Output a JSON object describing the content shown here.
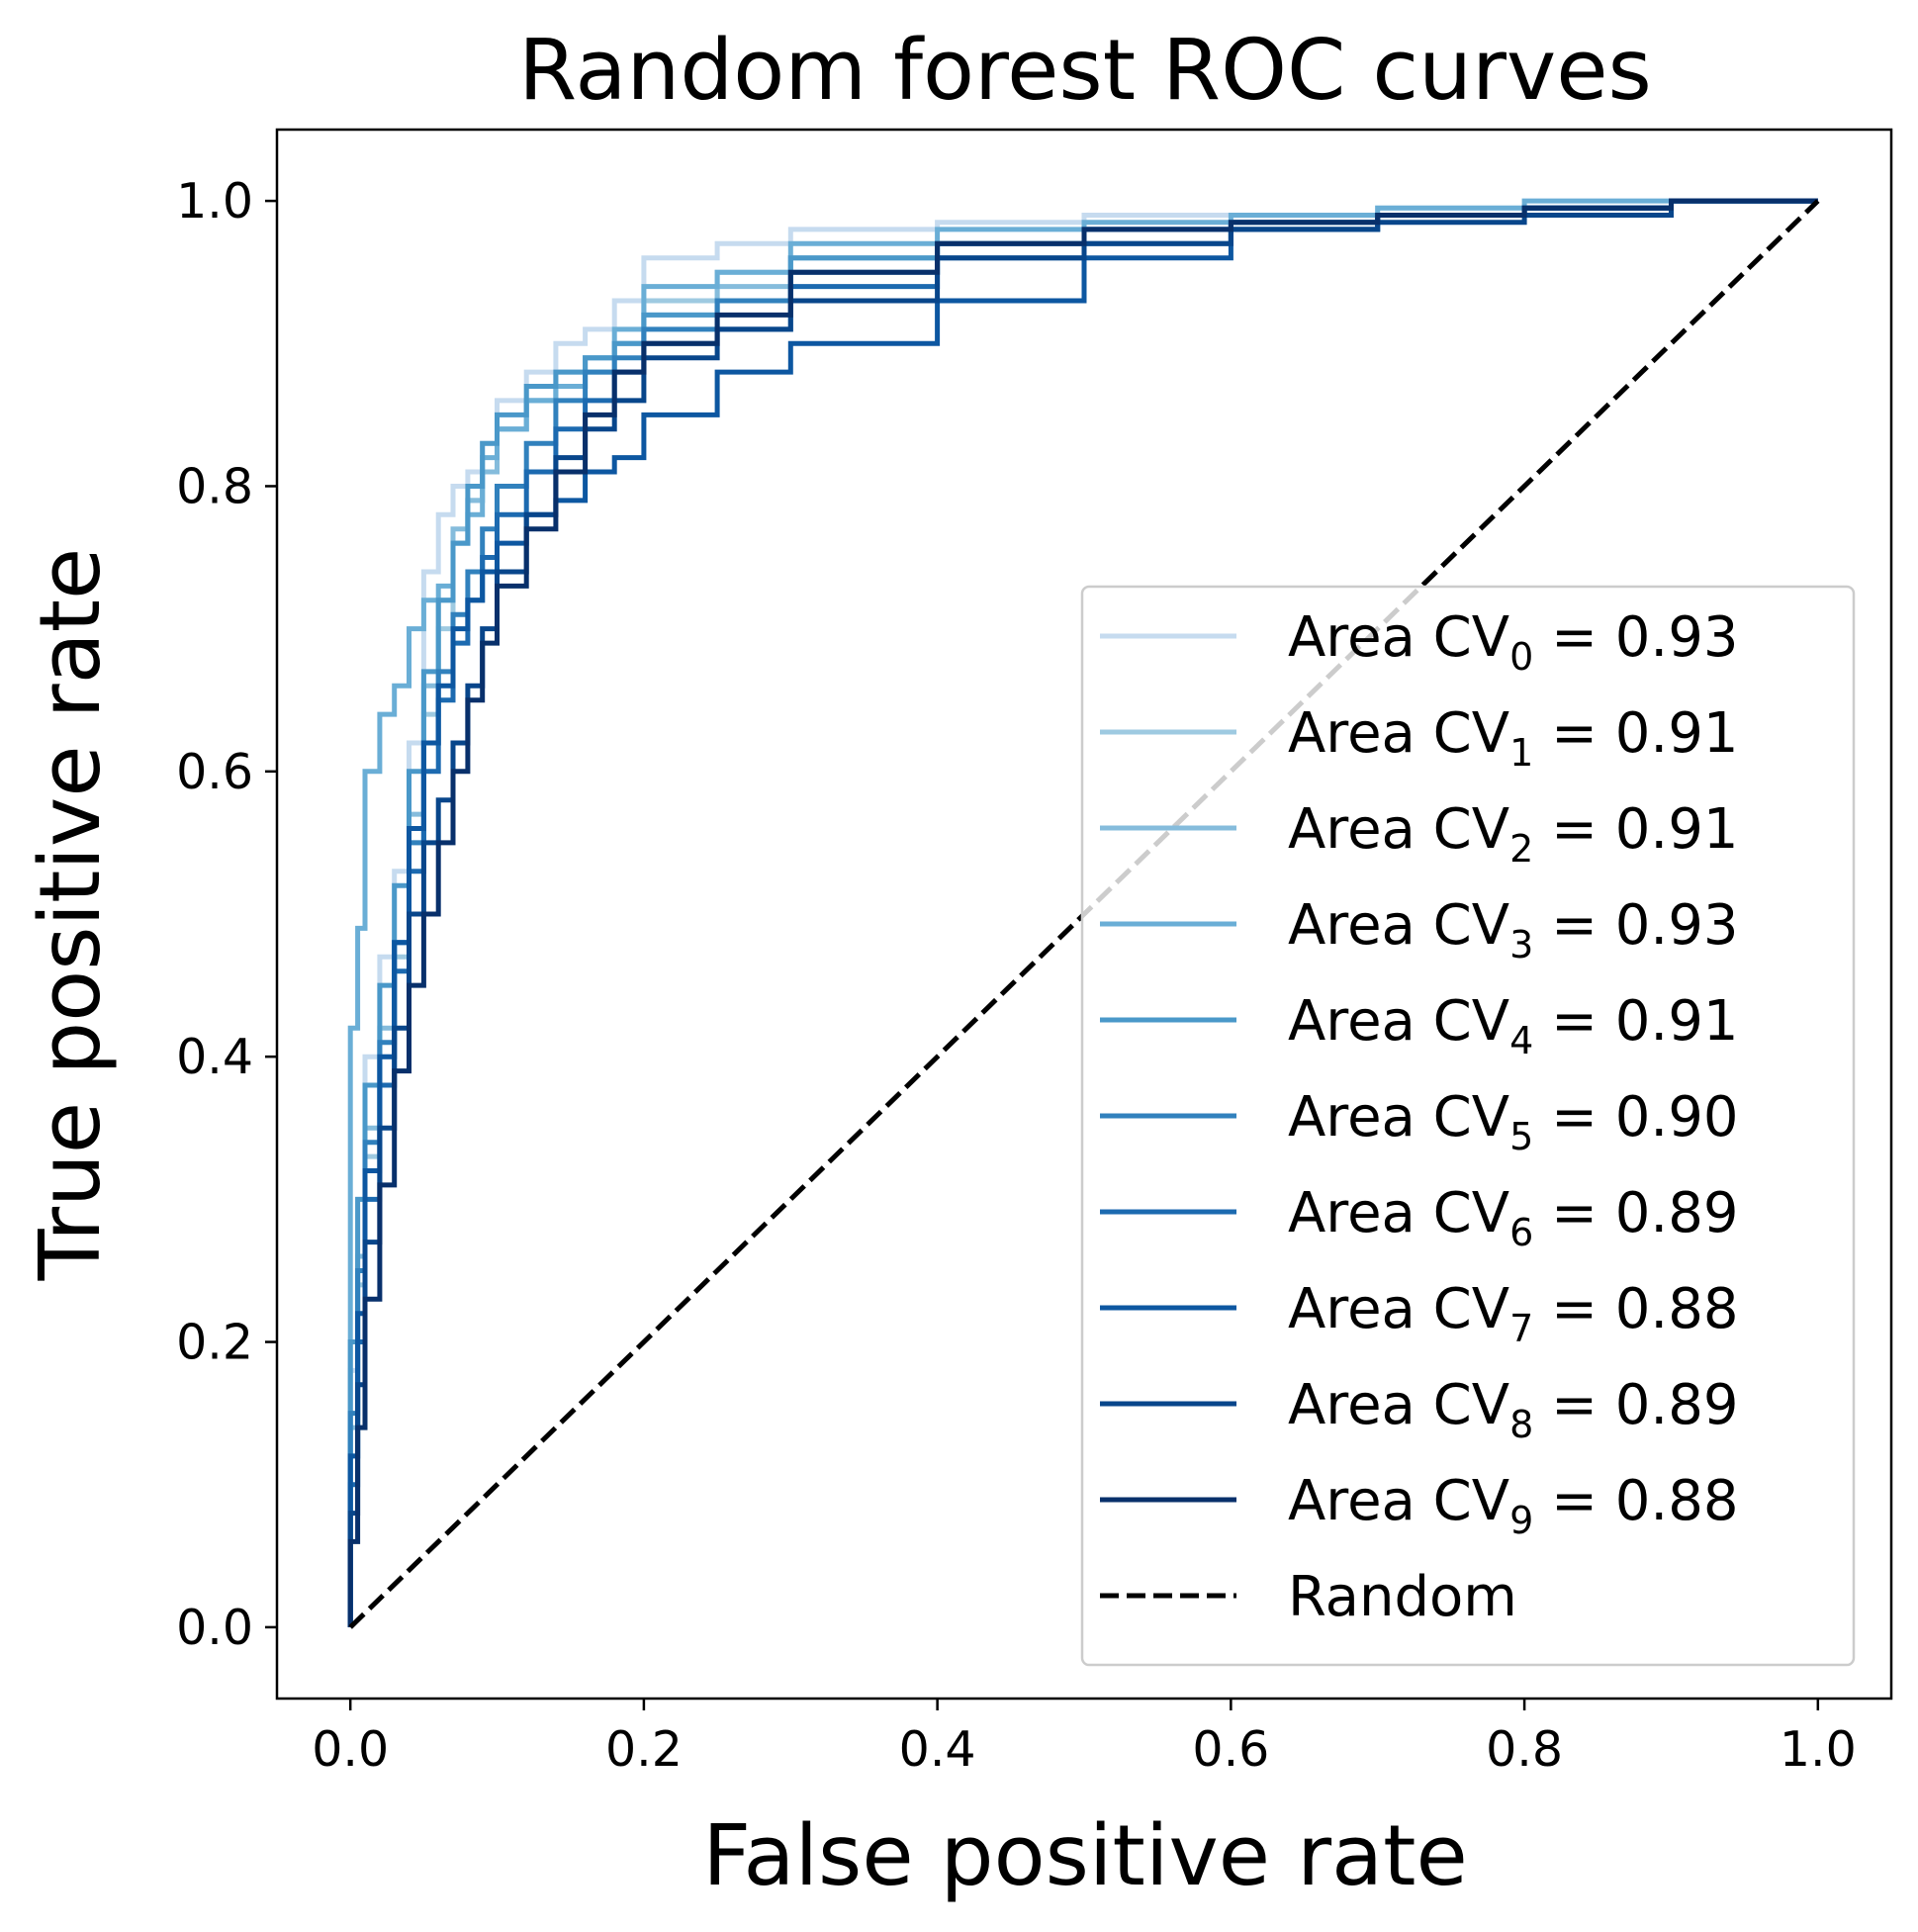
{
  "chart_data": {
    "type": "line",
    "title": "Random forest ROC curves",
    "xlabel": "False positive rate",
    "ylabel": "True positive rate",
    "xlim": [
      -0.05,
      1.05
    ],
    "ylim": [
      -0.05,
      1.05
    ],
    "xticks": [
      "0.0",
      "0.2",
      "0.4",
      "0.6",
      "0.8",
      "1.0"
    ],
    "yticks": [
      "0.0",
      "0.2",
      "0.4",
      "0.6",
      "0.8",
      "1.0"
    ],
    "grid": false,
    "legend_position": "lower-right",
    "series": [
      {
        "label_prefix": "Area CV",
        "label_sub": "0",
        "label_value": "= 0.93",
        "color": "#c6dbef",
        "x": [
          0,
          0.005,
          0.01,
          0.02,
          0.03,
          0.04,
          0.05,
          0.06,
          0.07,
          0.08,
          0.09,
          0.1,
          0.12,
          0.14,
          0.16,
          0.18,
          0.2,
          0.25,
          0.3,
          0.4,
          0.5,
          0.6,
          0.7,
          0.8,
          0.9,
          1.0
        ],
        "y": [
          0,
          0.18,
          0.3,
          0.4,
          0.47,
          0.53,
          0.62,
          0.74,
          0.78,
          0.8,
          0.81,
          0.83,
          0.86,
          0.88,
          0.9,
          0.91,
          0.93,
          0.96,
          0.97,
          0.98,
          0.985,
          0.99,
          0.99,
          0.995,
          0.995,
          1.0
        ]
      },
      {
        "label_prefix": "Area CV",
        "label_sub": "1",
        "label_value": "= 0.91",
        "color": "#9ecae1",
        "x": [
          0,
          0.005,
          0.01,
          0.02,
          0.03,
          0.04,
          0.05,
          0.06,
          0.07,
          0.08,
          0.09,
          0.1,
          0.12,
          0.14,
          0.16,
          0.18,
          0.2,
          0.25,
          0.3,
          0.4,
          0.5,
          0.6,
          0.7,
          0.8,
          0.9,
          1.0
        ],
        "y": [
          0,
          0.12,
          0.24,
          0.33,
          0.4,
          0.47,
          0.55,
          0.64,
          0.7,
          0.76,
          0.79,
          0.81,
          0.84,
          0.86,
          0.88,
          0.89,
          0.9,
          0.93,
          0.95,
          0.96,
          0.97,
          0.98,
          0.985,
          0.99,
          0.995,
          1.0
        ]
      },
      {
        "label_prefix": "Area CV",
        "label_sub": "2",
        "label_value": "= 0.91",
        "color": "#85bcdc",
        "x": [
          0,
          0.005,
          0.01,
          0.02,
          0.03,
          0.04,
          0.05,
          0.06,
          0.07,
          0.08,
          0.09,
          0.1,
          0.12,
          0.14,
          0.16,
          0.18,
          0.2,
          0.25,
          0.3,
          0.4,
          0.5,
          0.6,
          0.7,
          0.8,
          0.9,
          1.0
        ],
        "y": [
          0,
          0.14,
          0.26,
          0.35,
          0.42,
          0.48,
          0.57,
          0.66,
          0.72,
          0.77,
          0.79,
          0.81,
          0.84,
          0.86,
          0.87,
          0.88,
          0.9,
          0.92,
          0.94,
          0.96,
          0.97,
          0.98,
          0.985,
          0.99,
          0.995,
          1.0
        ]
      },
      {
        "label_prefix": "Area CV",
        "label_sub": "3",
        "label_value": "= 0.93",
        "color": "#6aaed6",
        "x": [
          0,
          0.005,
          0.01,
          0.02,
          0.03,
          0.04,
          0.05,
          0.06,
          0.07,
          0.08,
          0.09,
          0.1,
          0.12,
          0.14,
          0.16,
          0.18,
          0.2,
          0.25,
          0.3,
          0.4,
          0.5,
          0.6,
          0.7,
          0.8,
          0.9,
          1.0
        ],
        "y": [
          0,
          0.42,
          0.49,
          0.6,
          0.64,
          0.66,
          0.7,
          0.72,
          0.73,
          0.76,
          0.78,
          0.82,
          0.84,
          0.86,
          0.87,
          0.89,
          0.91,
          0.94,
          0.95,
          0.97,
          0.98,
          0.985,
          0.99,
          0.995,
          1.0,
          1.0
        ]
      },
      {
        "label_prefix": "Area CV",
        "label_sub": "4",
        "label_value": "= 0.91",
        "color": "#4a98c9",
        "x": [
          0,
          0.005,
          0.01,
          0.02,
          0.03,
          0.04,
          0.05,
          0.06,
          0.07,
          0.08,
          0.09,
          0.1,
          0.12,
          0.14,
          0.16,
          0.18,
          0.2,
          0.25,
          0.3,
          0.4,
          0.5,
          0.6,
          0.7,
          0.8,
          0.9,
          1.0
        ],
        "y": [
          0,
          0.2,
          0.3,
          0.38,
          0.45,
          0.52,
          0.6,
          0.67,
          0.72,
          0.76,
          0.8,
          0.83,
          0.85,
          0.87,
          0.88,
          0.89,
          0.9,
          0.92,
          0.93,
          0.96,
          0.97,
          0.98,
          0.985,
          0.99,
          0.995,
          1.0
        ]
      },
      {
        "label_prefix": "Area CV",
        "label_sub": "5",
        "label_value": "= 0.90",
        "color": "#3181bd",
        "x": [
          0,
          0.005,
          0.01,
          0.02,
          0.03,
          0.04,
          0.05,
          0.06,
          0.07,
          0.08,
          0.09,
          0.1,
          0.12,
          0.14,
          0.16,
          0.18,
          0.2,
          0.25,
          0.3,
          0.4,
          0.5,
          0.6,
          0.7,
          0.8,
          0.9,
          1.0
        ],
        "y": [
          0,
          0.15,
          0.25,
          0.34,
          0.41,
          0.48,
          0.55,
          0.62,
          0.67,
          0.71,
          0.74,
          0.77,
          0.8,
          0.83,
          0.86,
          0.88,
          0.89,
          0.91,
          0.93,
          0.95,
          0.97,
          0.98,
          0.985,
          0.99,
          0.995,
          1.0
        ]
      },
      {
        "label_prefix": "Area CV",
        "label_sub": "6",
        "label_value": "= 0.89",
        "color": "#1c6ab0",
        "x": [
          0,
          0.005,
          0.01,
          0.02,
          0.03,
          0.04,
          0.05,
          0.06,
          0.07,
          0.08,
          0.09,
          0.1,
          0.12,
          0.14,
          0.16,
          0.18,
          0.2,
          0.25,
          0.3,
          0.4,
          0.5,
          0.6,
          0.7,
          0.8,
          0.9,
          1.0
        ],
        "y": [
          0,
          0.1,
          0.2,
          0.3,
          0.38,
          0.46,
          0.53,
          0.6,
          0.65,
          0.69,
          0.72,
          0.75,
          0.78,
          0.81,
          0.84,
          0.86,
          0.88,
          0.9,
          0.91,
          0.94,
          0.96,
          0.97,
          0.98,
          0.99,
          0.995,
          1.0
        ]
      },
      {
        "label_prefix": "Area CV",
        "label_sub": "7",
        "label_value": "= 0.88",
        "color": "#0d57a1",
        "x": [
          0,
          0.005,
          0.01,
          0.02,
          0.03,
          0.04,
          0.05,
          0.06,
          0.07,
          0.08,
          0.09,
          0.1,
          0.12,
          0.14,
          0.16,
          0.18,
          0.2,
          0.25,
          0.3,
          0.4,
          0.5,
          0.6,
          0.7,
          0.8,
          0.9,
          1.0
        ],
        "y": [
          0,
          0.12,
          0.22,
          0.32,
          0.4,
          0.48,
          0.56,
          0.62,
          0.66,
          0.7,
          0.72,
          0.74,
          0.76,
          0.78,
          0.79,
          0.81,
          0.82,
          0.85,
          0.88,
          0.9,
          0.93,
          0.96,
          0.98,
          0.99,
          0.995,
          1.0
        ]
      },
      {
        "label_prefix": "Area CV",
        "label_sub": "8",
        "label_value": "= 0.89",
        "color": "#08468b",
        "x": [
          0,
          0.005,
          0.01,
          0.02,
          0.03,
          0.04,
          0.05,
          0.06,
          0.07,
          0.08,
          0.09,
          0.1,
          0.12,
          0.14,
          0.16,
          0.18,
          0.2,
          0.25,
          0.3,
          0.4,
          0.5,
          0.6,
          0.7,
          0.8,
          0.9,
          1.0
        ],
        "y": [
          0,
          0.08,
          0.17,
          0.27,
          0.35,
          0.42,
          0.5,
          0.55,
          0.58,
          0.62,
          0.66,
          0.7,
          0.74,
          0.78,
          0.82,
          0.84,
          0.86,
          0.89,
          0.91,
          0.93,
          0.96,
          0.97,
          0.98,
          0.985,
          0.99,
          1.0
        ]
      },
      {
        "label_prefix": "Area CV",
        "label_sub": "9",
        "label_value": "= 0.88",
        "color": "#08306b",
        "x": [
          0,
          0.005,
          0.01,
          0.02,
          0.03,
          0.04,
          0.05,
          0.06,
          0.07,
          0.08,
          0.09,
          0.1,
          0.12,
          0.14,
          0.16,
          0.18,
          0.2,
          0.25,
          0.3,
          0.4,
          0.5,
          0.6,
          0.7,
          0.8,
          0.9,
          1.0
        ],
        "y": [
          0,
          0.06,
          0.14,
          0.23,
          0.31,
          0.39,
          0.45,
          0.5,
          0.55,
          0.6,
          0.65,
          0.69,
          0.73,
          0.77,
          0.81,
          0.85,
          0.88,
          0.9,
          0.92,
          0.95,
          0.97,
          0.98,
          0.985,
          0.99,
          0.995,
          1.0
        ]
      }
    ],
    "reference_line": {
      "label": "Random",
      "x": [
        0,
        1
      ],
      "y": [
        0,
        1
      ],
      "color": "#000000",
      "style": "dashed"
    }
  }
}
